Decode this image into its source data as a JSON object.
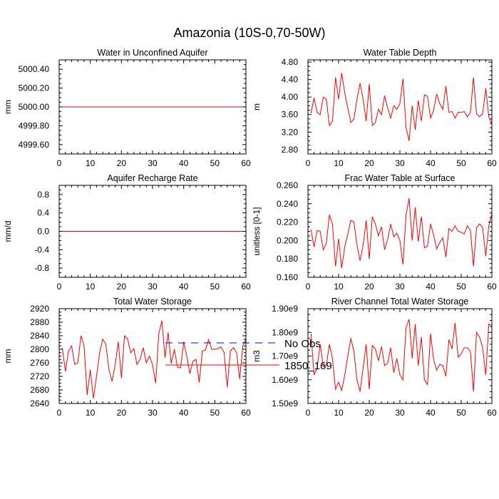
{
  "title": "Amazonia (10S-0,70-50W)",
  "colors": {
    "frame": "#000000",
    "model": "#ff0000",
    "obs": "#0000ff"
  },
  "legend": [
    {
      "label": "No Obs",
      "style": "dashed",
      "color": "#0000ff"
    },
    {
      "label": "1850_169",
      "style": "solid",
      "color": "#ff0000"
    }
  ],
  "chart_data": [
    {
      "type": "line",
      "title": "Water in Unconfined Aquifer",
      "ylabel": "mm",
      "xlim": [
        0,
        60
      ],
      "ylim": [
        4999.5,
        5000.5
      ],
      "xticks": [
        0,
        10,
        20,
        30,
        40,
        50,
        60
      ],
      "yticks": [
        4999.6,
        4999.8,
        5000.0,
        5000.2,
        5000.4
      ],
      "ytick_labels": [
        "4999.60",
        "4999.80",
        "5000.00",
        "5000.20",
        "5000.40"
      ],
      "series": [
        {
          "name": "1850_169",
          "color": "#ff0000",
          "x_start": 1,
          "values": [
            5000,
            5000,
            5000,
            5000,
            5000,
            5000,
            5000,
            5000,
            5000,
            5000,
            5000,
            5000,
            5000,
            5000,
            5000,
            5000,
            5000,
            5000,
            5000,
            5000,
            5000,
            5000,
            5000,
            5000,
            5000,
            5000,
            5000,
            5000,
            5000,
            5000,
            5000,
            5000,
            5000,
            5000,
            5000,
            5000,
            5000,
            5000,
            5000,
            5000,
            5000,
            5000,
            5000,
            5000,
            5000,
            5000,
            5000,
            5000,
            5000,
            5000,
            5000,
            5000,
            5000,
            5000,
            5000,
            5000,
            5000,
            5000,
            5000,
            5000
          ]
        }
      ]
    },
    {
      "type": "line",
      "title": "Water Table Depth",
      "ylabel": "m",
      "xlim": [
        0,
        60
      ],
      "ylim": [
        2.7,
        4.85
      ],
      "xticks": [
        0,
        10,
        20,
        30,
        40,
        50,
        60
      ],
      "yticks": [
        2.8,
        3.2,
        3.6,
        4.0,
        4.4,
        4.8
      ],
      "ytick_labels": [
        "2.80",
        "3.20",
        "3.60",
        "4.00",
        "4.40",
        "4.80"
      ],
      "series": [
        {
          "name": "1850_169",
          "color": "#ff0000",
          "x_start": 1,
          "values": [
            3.63,
            3.98,
            3.65,
            3.6,
            4.0,
            3.95,
            3.35,
            3.45,
            4.45,
            3.95,
            4.55,
            4.1,
            3.75,
            3.42,
            3.5,
            3.95,
            4.32,
            3.95,
            3.45,
            4.3,
            3.35,
            3.42,
            3.72,
            3.6,
            4.03,
            3.75,
            3.52,
            3.8,
            3.72,
            3.85,
            4.42,
            3.3,
            3.0,
            3.8,
            3.25,
            3.92,
            3.45,
            4.05,
            4.02,
            3.52,
            3.7,
            4.07,
            3.85,
            3.72,
            4.25,
            3.65,
            3.67,
            3.52,
            3.65,
            3.65,
            3.67,
            3.55,
            3.65,
            4.45,
            3.62,
            3.55,
            3.62,
            4.2,
            3.55,
            3.38
          ]
        }
      ]
    },
    {
      "type": "line",
      "title": "Aquifer Recharge Rate",
      "ylabel": "mm/d",
      "xlim": [
        0,
        60
      ],
      "ylim": [
        -1.0,
        1.0
      ],
      "xticks": [
        0,
        10,
        20,
        30,
        40,
        50,
        60
      ],
      "yticks": [
        -0.8,
        -0.4,
        0.0,
        0.4,
        0.8
      ],
      "ytick_labels": [
        "-0.8",
        "-0.4",
        "0.0",
        "0.4",
        "0.8"
      ],
      "series": [
        {
          "name": "1850_169",
          "color": "#ff0000",
          "x_start": 1,
          "values": [
            0,
            0,
            0,
            0,
            0,
            0,
            0,
            0,
            0,
            0,
            0,
            0,
            0,
            0,
            0,
            0,
            0,
            0,
            0,
            0,
            0,
            0,
            0,
            0,
            0,
            0,
            0,
            0,
            0,
            0,
            0,
            0,
            0,
            0,
            0,
            0,
            0,
            0,
            0,
            0,
            0,
            0,
            0,
            0,
            0,
            0,
            0,
            0,
            0,
            0,
            0,
            0,
            0,
            0,
            0,
            0,
            0,
            0,
            0,
            0
          ]
        }
      ]
    },
    {
      "type": "line",
      "title": "Frac Water Table at Surface",
      "ylabel": "unitless [0-1]",
      "xlim": [
        0,
        60
      ],
      "ylim": [
        0.16,
        0.26
      ],
      "xticks": [
        0,
        10,
        20,
        30,
        40,
        50,
        60
      ],
      "yticks": [
        0.16,
        0.18,
        0.2,
        0.22,
        0.24,
        0.26
      ],
      "ytick_labels": [
        "0.160",
        "0.180",
        "0.200",
        "0.220",
        "0.240",
        "0.260"
      ],
      "series": [
        {
          "name": "1850_169",
          "color": "#ff0000",
          "x_start": 1,
          "values": [
            0.212,
            0.193,
            0.211,
            0.21,
            0.19,
            0.197,
            0.228,
            0.218,
            0.172,
            0.202,
            0.17,
            0.193,
            0.207,
            0.222,
            0.22,
            0.195,
            0.178,
            0.195,
            0.222,
            0.18,
            0.226,
            0.218,
            0.205,
            0.215,
            0.19,
            0.201,
            0.218,
            0.204,
            0.208,
            0.2,
            0.174,
            0.228,
            0.246,
            0.2,
            0.236,
            0.199,
            0.226,
            0.192,
            0.194,
            0.218,
            0.206,
            0.191,
            0.198,
            0.203,
            0.182,
            0.213,
            0.21,
            0.216,
            0.21,
            0.209,
            0.207,
            0.216,
            0.211,
            0.172,
            0.214,
            0.218,
            0.214,
            0.183,
            0.216,
            0.229
          ]
        }
      ]
    },
    {
      "type": "line",
      "title": "Total Water Storage",
      "ylabel": "mm",
      "xlim": [
        0,
        60
      ],
      "ylim": [
        2640,
        2920
      ],
      "xticks": [
        0,
        10,
        20,
        30,
        40,
        50,
        60
      ],
      "yticks": [
        2640,
        2680,
        2720,
        2760,
        2800,
        2840,
        2880,
        2920
      ],
      "ytick_labels": [
        "2640",
        "2680",
        "2720",
        "2760",
        "2800",
        "2840",
        "2880",
        "2920"
      ],
      "series": [
        {
          "name": "1850_169",
          "color": "#ff0000",
          "x_start": 1,
          "values": [
            2805,
            2735,
            2795,
            2810,
            2755,
            2760,
            2840,
            2810,
            2665,
            2740,
            2655,
            2720,
            2790,
            2830,
            2815,
            2740,
            2705,
            2755,
            2822,
            2715,
            2840,
            2830,
            2790,
            2802,
            2755,
            2770,
            2805,
            2760,
            2780,
            2755,
            2700,
            2845,
            2885,
            2775,
            2850,
            2758,
            2800,
            2748,
            2745,
            2822,
            2780,
            2728,
            2765,
            2770,
            2702,
            2795,
            2798,
            2828,
            2800,
            2800,
            2802,
            2807,
            2790,
            2688,
            2795,
            2805,
            2790,
            2712,
            2810,
            2830
          ]
        }
      ]
    },
    {
      "type": "line",
      "title": "River Channel Total Water Storage",
      "ylabel": "m3",
      "xlim": [
        0,
        60
      ],
      "ylim": [
        1500000000.0,
        1900000000.0
      ],
      "xticks": [
        0,
        10,
        20,
        30,
        40,
        50,
        60
      ],
      "yticks": [
        1500000000.0,
        1600000000.0,
        1700000000.0,
        1800000000.0,
        1900000000.0
      ],
      "ytick_labels": [
        "1.50e9",
        "1.60e9",
        "1.70e9",
        "1.80e9",
        "1.90e9"
      ],
      "series": [
        {
          "name": "1850_169",
          "color": "#ff0000",
          "x_start": 1,
          "values": [
            1795000000.0,
            1620000000.0,
            1650000000.0,
            1750000000.0,
            1655000000.0,
            1660000000.0,
            1750000000.0,
            1690000000.0,
            1560000000.0,
            1590000000.0,
            1555000000.0,
            1620000000.0,
            1700000000.0,
            1775000000.0,
            1720000000.0,
            1600000000.0,
            1550000000.0,
            1650000000.0,
            1750000000.0,
            1560000000.0,
            1745000000.0,
            1730000000.0,
            1680000000.0,
            1740000000.0,
            1660000000.0,
            1670000000.0,
            1735000000.0,
            1630000000.0,
            1690000000.0,
            1620000000.0,
            1600000000.0,
            1820000000.0,
            1855000000.0,
            1690000000.0,
            1835000000.0,
            1660000000.0,
            1780000000.0,
            1600000000.0,
            1580000000.0,
            1795000000.0,
            1685000000.0,
            1640000000.0,
            1665000000.0,
            1660000000.0,
            1615000000.0,
            1770000000.0,
            1730000000.0,
            1840000000.0,
            1695000000.0,
            1710000000.0,
            1735000000.0,
            1735000000.0,
            1720000000.0,
            1550000000.0,
            1800000000.0,
            1780000000.0,
            1735000000.0,
            1620000000.0,
            1835000000.0,
            1830000000.0
          ]
        }
      ]
    }
  ]
}
